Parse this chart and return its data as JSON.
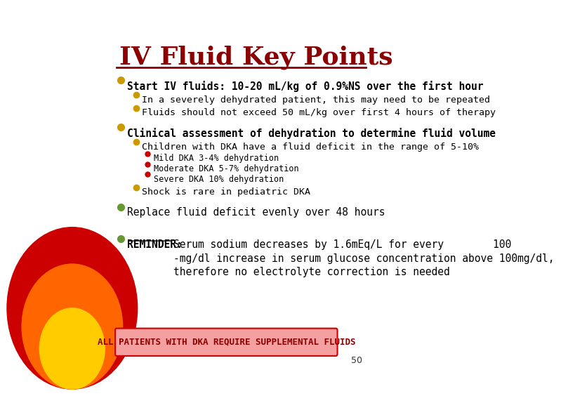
{
  "title": "IV Fluid Key Points",
  "title_color": "#8B0000",
  "bg_color": "#FFFFFF",
  "border_color": "#C8B400",
  "slide_border_color": "#C8B400",
  "divider_color": "#8B0000",
  "left_circle_colors": [
    "#CC0000",
    "#FF6600",
    "#FFCC00"
  ],
  "bullet_color_gold": "#CC9900",
  "bullet_color_red": "#CC0000",
  "bullet_color_green": "#669933",
  "footer_bg": "#F08080",
  "footer_text": "ALL PATIENTS WITH DKA REQUIRE SUPPLEMENTAL FLUIDS",
  "footer_text_color": "#8B0000",
  "page_number": "50",
  "lines": [
    {
      "level": 1,
      "bullet": "gold",
      "text": "Start IV fluids: 10-20 mL/kg of 0.9%NS over the first hour",
      "bold": true,
      "font": "monospace"
    },
    {
      "level": 2,
      "bullet": "gold",
      "text": "In a severely dehydrated patient, this may need to be repeated",
      "bold": false,
      "font": "monospace"
    },
    {
      "level": 2,
      "bullet": "gold",
      "text": "Fluids should not exceed 50 mL/kg over first 4 hours of therapy",
      "bold": false,
      "font": "monospace"
    },
    {
      "level": 1,
      "bullet": "gold",
      "text": "Clinical assessment of dehydration to determine fluid volume",
      "bold": true,
      "font": "monospace"
    },
    {
      "level": 2,
      "bullet": "gold",
      "text": "Children with DKA have a fluid deficit in the range of 5-10%",
      "bold": false,
      "font": "monospace"
    },
    {
      "level": 3,
      "bullet": "red",
      "text": "Mild DKA 3-4% dehydration",
      "bold": false,
      "font": "monospace"
    },
    {
      "level": 3,
      "bullet": "red",
      "text": "Moderate DKA 5-7% dehydration",
      "bold": false,
      "font": "monospace"
    },
    {
      "level": 3,
      "bullet": "red",
      "text": "Severe DKA 10% dehydration",
      "bold": false,
      "font": "monospace"
    },
    {
      "level": 2,
      "bullet": "gold",
      "text": "Shock is rare in pediatric DKA",
      "bold": false,
      "font": "monospace"
    },
    {
      "level": 1,
      "bullet": "green",
      "text": "Replace fluid deficit evenly over 48 hours",
      "bold": false,
      "font": "monospace"
    },
    {
      "level": 1,
      "bullet": "green",
      "text_parts": [
        {
          "text": "REMINDER: ",
          "bold": true,
          "underline": true
        },
        {
          "text": "Serum sodium decreases by 1.6mEq/L for every        100\n-mg/dl increase in serum glucose concentration above 100mg/dl,\ntherefore no electrolyte correction is needed",
          "bold": false
        }
      ],
      "font": "monospace"
    }
  ]
}
